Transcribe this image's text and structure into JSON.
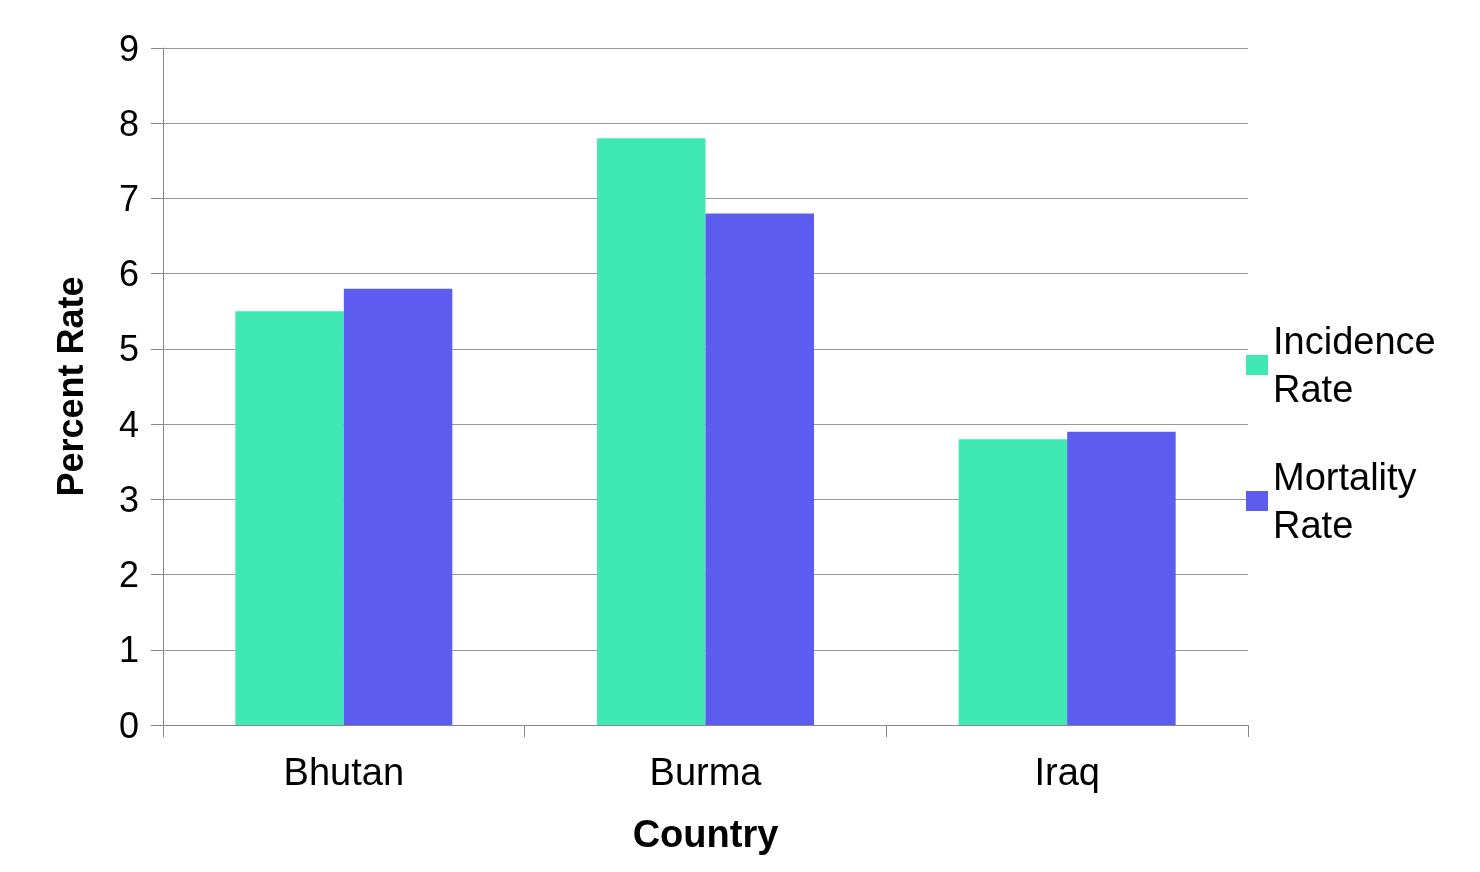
{
  "chart_data": {
    "type": "bar",
    "xlabel": "Country",
    "ylabel": "Percent Rate",
    "categories": [
      "Bhutan",
      "Burma",
      "Iraq"
    ],
    "series": [
      {
        "name": "Incidence Rate",
        "color": "#40e8b4",
        "values": [
          5.5,
          7.8,
          3.8
        ]
      },
      {
        "name": "Mortality Rate",
        "color": "#5c5cf0",
        "values": [
          5.8,
          6.8,
          3.9
        ]
      }
    ],
    "ylim": [
      0,
      9
    ],
    "yticks": [
      0,
      1,
      2,
      3,
      4,
      5,
      6,
      7,
      8,
      9
    ],
    "grid": "y",
    "legend": "right"
  }
}
